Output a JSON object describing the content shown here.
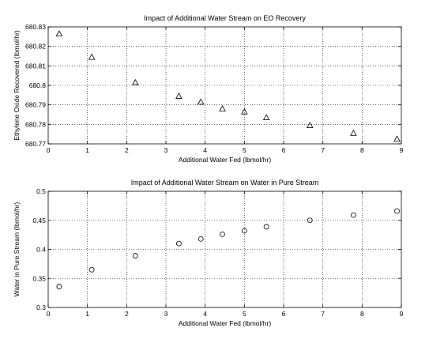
{
  "chart_data": [
    {
      "type": "scatter",
      "title": "Impact of Additional Water Stream on EO Recovery",
      "xlabel": "Additional Water Fed (lbmol/hr)",
      "ylabel": "Ethylene Oxide Recovered (lbmol/hr)",
      "xlim": [
        0,
        9
      ],
      "ylim": [
        680.77,
        680.83
      ],
      "xticks": [
        0,
        1,
        2,
        3,
        4,
        5,
        6,
        7,
        8,
        9
      ],
      "yticks": [
        680.77,
        680.78,
        680.79,
        680.8,
        680.81,
        680.82,
        680.83
      ],
      "ytick_labels": [
        "680.77",
        "680.78",
        "680.79",
        "680.8",
        "680.81",
        "680.82",
        "680.83"
      ],
      "grid": true,
      "marker": "triangle",
      "x": [
        0.28,
        1.11,
        2.22,
        3.33,
        3.89,
        4.44,
        5.0,
        5.56,
        6.67,
        7.78,
        8.89
      ],
      "y": [
        680.8265,
        680.8145,
        680.8015,
        680.7945,
        680.7915,
        680.788,
        680.7865,
        680.7835,
        680.7795,
        680.7755,
        680.7725
      ]
    },
    {
      "type": "scatter",
      "title": "Impact of Additional Water Stream on Water in Pure Stream",
      "xlabel": "Additional Water Fed (lbmol/hr)",
      "ylabel": "Water in Pure Stream (lbmol/hr)",
      "xlim": [
        0,
        9
      ],
      "ylim": [
        0.3,
        0.5
      ],
      "xticks": [
        0,
        1,
        2,
        3,
        4,
        5,
        6,
        7,
        8,
        9
      ],
      "yticks": [
        0.3,
        0.35,
        0.4,
        0.45,
        0.5
      ],
      "ytick_labels": [
        "0.3",
        "0.35",
        "0.4",
        "0.45",
        "0.5"
      ],
      "grid": true,
      "marker": "circle",
      "x": [
        0.28,
        1.11,
        2.22,
        3.33,
        3.89,
        4.44,
        5.0,
        5.56,
        6.67,
        7.78,
        8.89
      ],
      "y": [
        0.336,
        0.365,
        0.389,
        0.41,
        0.418,
        0.426,
        0.432,
        0.439,
        0.45,
        0.459,
        0.466
      ]
    }
  ]
}
